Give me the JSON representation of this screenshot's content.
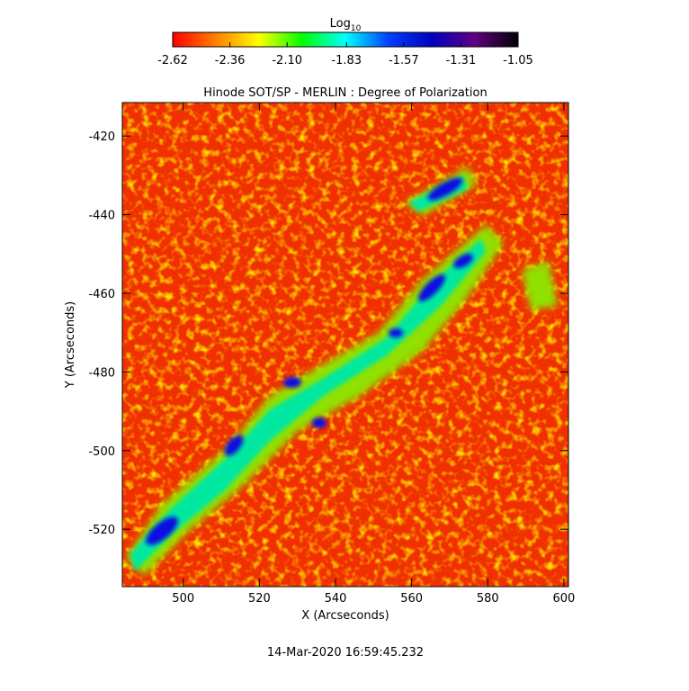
{
  "chart_data": {
    "type": "heatmap",
    "title": "Hinode SOT/SP - MERLIN : Degree of Polarization",
    "xlabel": "X (Arcseconds)",
    "ylabel": "Y (Arcseconds)",
    "xlim": [
      484,
      601.2
    ],
    "xticks": [
      500,
      520,
      540,
      560,
      580,
      600
    ],
    "ylim": [
      -534.6,
      -411.5
    ],
    "yticks": [
      -520,
      -500,
      -480,
      -460,
      -440,
      -420
    ],
    "colorbar": {
      "label": "Log",
      "label_sub": "10",
      "range": [
        -2.62,
        -1.05
      ],
      "ticks": [
        -2.62,
        -2.36,
        {
          "value": -2.1,
          "label": "-2.10"
        },
        -1.83,
        -1.57,
        -1.31,
        -1.05
      ],
      "colors": [
        "#ff0000",
        "#ff8000",
        "#ffff00",
        "#00ff00",
        "#00ffff",
        "#0040ff",
        "#0000c0",
        "#600080",
        "#000000"
      ]
    },
    "footer": "14-Mar-2020 16:59:45.232"
  }
}
